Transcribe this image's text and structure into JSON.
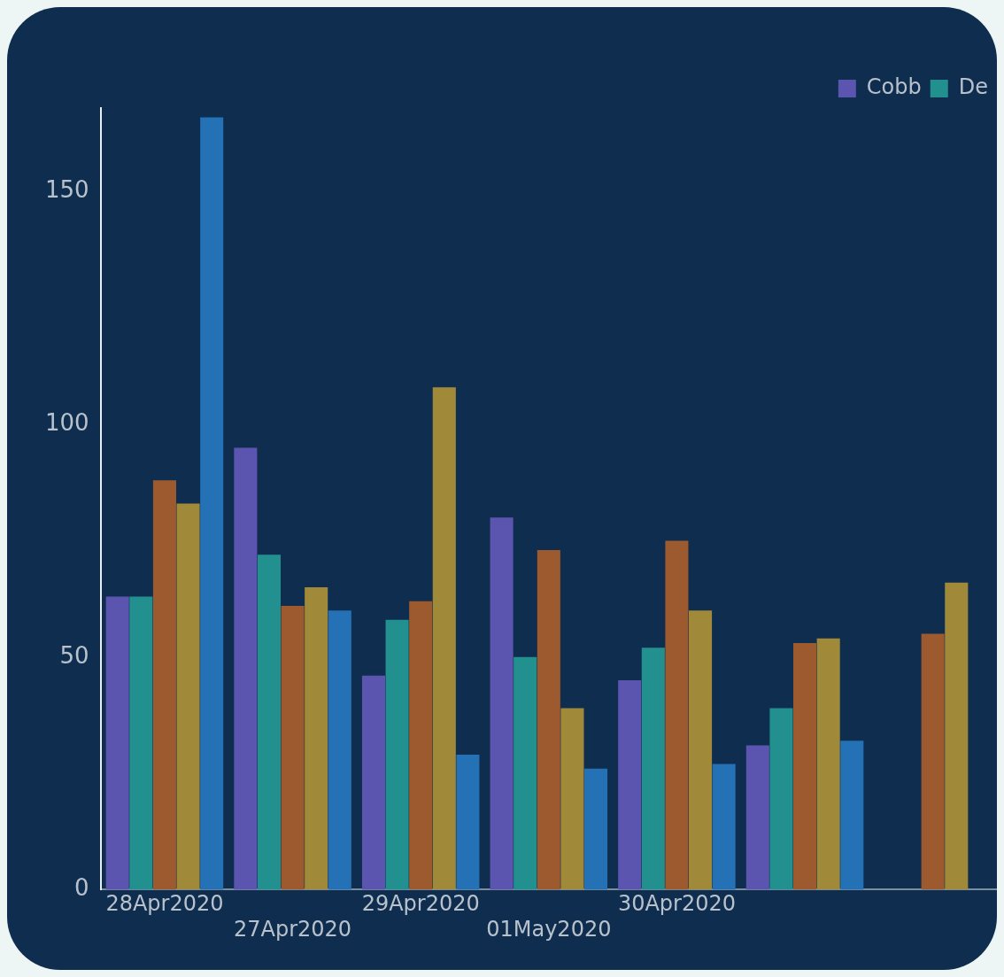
{
  "chart_data": {
    "type": "bar",
    "categories": [
      "28Apr2020",
      "27Apr2020",
      "29Apr2020",
      "01May2020",
      "30Apr2020",
      null,
      null
    ],
    "series": [
      {
        "name": "Cobb",
        "color": "#5b55b0",
        "values": [
          63,
          95,
          46,
          80,
          45,
          31,
          null
        ]
      },
      {
        "name": "De",
        "color": "#239090",
        "values": [
          63,
          72,
          58,
          50,
          52,
          39,
          null
        ]
      },
      {
        "color": "#9c5a2e",
        "values": [
          88,
          61,
          62,
          73,
          75,
          53,
          55
        ]
      },
      {
        "color": "#a08a3a",
        "values": [
          83,
          65,
          108,
          39,
          60,
          54,
          66
        ]
      },
      {
        "color": "#2471b5",
        "values": [
          166,
          60,
          29,
          26,
          27,
          32,
          null
        ]
      }
    ],
    "ylim": [
      0,
      168
    ],
    "yticks": [
      0,
      50,
      100,
      150
    ],
    "grid": false,
    "legend": "top right"
  }
}
